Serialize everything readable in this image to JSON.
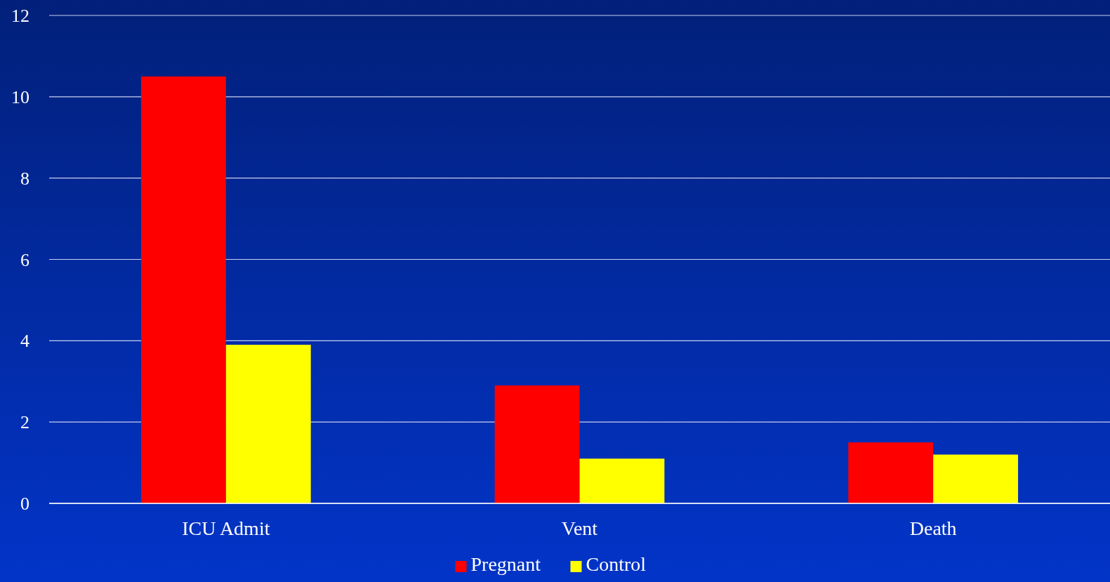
{
  "chart_data": {
    "type": "bar",
    "categories": [
      "ICU Admit",
      "Vent",
      "Death"
    ],
    "series": [
      {
        "name": "Pregnant",
        "color": "#ff0000",
        "values": [
          10.5,
          2.9,
          1.5
        ]
      },
      {
        "name": "Control",
        "color": "#ffff00",
        "values": [
          3.9,
          1.1,
          1.2
        ]
      }
    ],
    "ylim": [
      0,
      12
    ],
    "yticks": [
      0,
      2,
      4,
      6,
      8,
      10,
      12
    ],
    "grid": "y",
    "legend": "bottom"
  }
}
